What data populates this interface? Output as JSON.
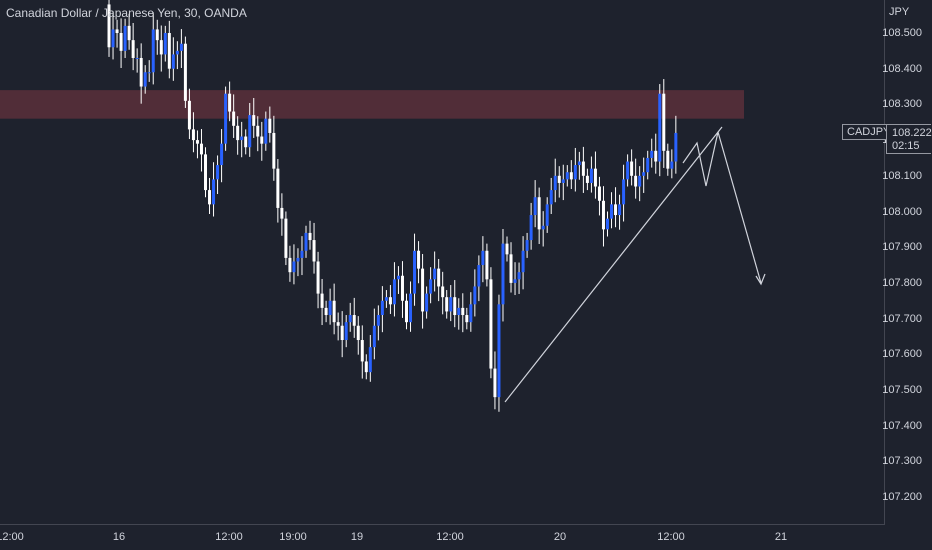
{
  "header": {
    "title": "Canadian Dollar / Japanese Yen, 30, OANDA"
  },
  "axis": {
    "currency": "JPY",
    "y_ticks": [
      "108.500",
      "108.400",
      "108.300",
      "108.200",
      "108.100",
      "108.000",
      "107.900",
      "107.800",
      "107.700",
      "107.600",
      "107.500",
      "107.400",
      "107.300",
      "107.200"
    ],
    "x_ticks": [
      "12:00",
      "16",
      "12:00",
      "19:00",
      "19",
      "12:00",
      "20",
      "12:00",
      "21"
    ]
  },
  "price_badge": {
    "symbol": "CADJPY",
    "price": "108.222",
    "countdown": "02:15"
  },
  "colors": {
    "background": "#1e222d",
    "bull": "#2962ff",
    "bear": "#ffffff",
    "zone": "#5a2f3b",
    "text": "#d1d4dc"
  },
  "chart_data": {
    "type": "candlestick",
    "title": "Canadian Dollar / Japanese Yen, 30, OANDA",
    "ylabel": "JPY",
    "ylim": [
      107.13,
      108.58
    ],
    "x_ticks": [
      "12:00",
      "16",
      "12:00",
      "19:00",
      "19",
      "12:00",
      "20",
      "12:00",
      "21"
    ],
    "resistance_zone": {
      "from": 108.26,
      "to": 108.34
    },
    "series": [
      {
        "name": "CADJPY",
        "closes": [
          108.58,
          108.46,
          108.51,
          108.5,
          108.45,
          108.52,
          108.48,
          108.43,
          108.43,
          108.35,
          108.39,
          108.39,
          108.51,
          108.48,
          108.44,
          108.5,
          108.4,
          108.44,
          108.45,
          108.47,
          108.31,
          108.23,
          108.2,
          108.19,
          108.16,
          108.06,
          108.02,
          108.09,
          108.13,
          108.19,
          108.33,
          108.28,
          108.24,
          108.2,
          108.21,
          108.18,
          108.27,
          108.24,
          108.21,
          108.19,
          108.26,
          108.22,
          108.12,
          108.01,
          107.98,
          107.87,
          107.83,
          107.86,
          107.87,
          107.89,
          107.94,
          107.92,
          107.86,
          107.77,
          107.73,
          107.71,
          107.75,
          107.69,
          107.68,
          107.64,
          107.69,
          107.71,
          107.68,
          107.64,
          107.58,
          107.55,
          107.62,
          107.68,
          107.71,
          107.75,
          107.76,
          107.74,
          107.81,
          107.82,
          107.75,
          107.69,
          107.77,
          107.89,
          107.84,
          107.72,
          107.77,
          107.81,
          107.84,
          107.79,
          107.76,
          107.72,
          107.76,
          107.71,
          107.73,
          107.71,
          107.69,
          107.74,
          107.79,
          107.85,
          107.89,
          107.81,
          107.56,
          107.48,
          107.74,
          107.91,
          107.88,
          107.8,
          107.81,
          107.83,
          107.89,
          107.92,
          107.99,
          108.04,
          107.95,
          107.96,
          108.02,
          108.06,
          108.1,
          108.08,
          108.09,
          108.11,
          108.09,
          108.13,
          108.14,
          108.1,
          108.08,
          108.12,
          108.07,
          108.03,
          107.95,
          107.98,
          108.02,
          107.99,
          108.02,
          108.09,
          108.14,
          108.1,
          108.07,
          108.1,
          108.11,
          108.15,
          108.17,
          108.14,
          108.33,
          108.17,
          108.12,
          108.14,
          108.22
        ]
      }
    ],
    "annotations": [
      "trendline",
      "projection-path"
    ]
  }
}
